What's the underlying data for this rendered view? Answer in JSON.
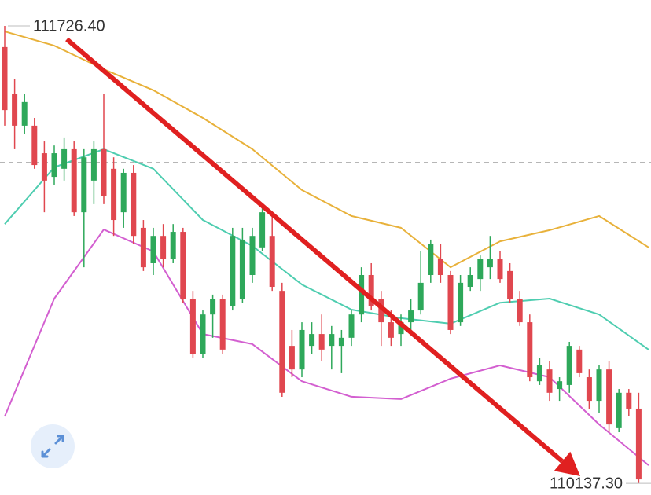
{
  "chart_data": {
    "type": "candlestick",
    "ylim": [
      110096.6,
      111816.5
    ],
    "up_color": "#2ea85a",
    "down_color": "#e0474f",
    "open": [
      111653,
      111489,
      111380,
      111380,
      111284,
      111202,
      111230,
      111298,
      111079,
      111189,
      111298,
      111230,
      111079,
      111216,
      111025,
      110902,
      110997,
      110916,
      111011,
      110779,
      110588,
      110724,
      110779,
      110752,
      110779,
      110861,
      110957,
      110997,
      110806,
      110615,
      110533,
      110615,
      110656,
      110615,
      110615,
      110643,
      110724,
      110861,
      110779,
      110697,
      110656,
      110697,
      110738,
      110861,
      110916,
      110861,
      110697,
      110820,
      110847,
      110888,
      110916,
      110875,
      110779,
      110697,
      110492,
      110533,
      110465,
      110479,
      110602,
      110506,
      110424,
      110533,
      110329,
      110452,
      110397
    ],
    "high": [
      111726.4,
      111543,
      111489,
      111407,
      111325,
      111311,
      111339,
      111325,
      111298,
      111325,
      111489,
      111270,
      111230,
      111243,
      111052,
      111025,
      111038,
      111038,
      111025,
      110806,
      110738,
      110793,
      110793,
      111025,
      111025,
      111025,
      111093,
      111079,
      110834,
      110670,
      110697,
      110697,
      110724,
      110684,
      110670,
      110738,
      110888,
      110902,
      110806,
      110738,
      110724,
      110779,
      110943,
      110984,
      110970,
      110875,
      110861,
      110888,
      110929,
      110997,
      110943,
      110902,
      110806,
      110724,
      110574,
      110561,
      110506,
      110629,
      110615,
      110533,
      110547,
      110561,
      110465,
      110465,
      110452
    ],
    "low": [
      111380,
      111298,
      111352,
      111230,
      111079,
      111175,
      111189,
      111066,
      110888,
      111107,
      111107,
      110997,
      111025,
      110970,
      110875,
      110861,
      110888,
      110902,
      110765,
      110574,
      110574,
      110643,
      110588,
      110738,
      110765,
      110834,
      110943,
      110806,
      110438,
      110506,
      110506,
      110588,
      110561,
      110533,
      110520,
      110615,
      110697,
      110738,
      110615,
      110615,
      110615,
      110656,
      110724,
      110834,
      110834,
      110656,
      110684,
      110806,
      110806,
      110847,
      110834,
      110765,
      110684,
      110492,
      110479,
      110424,
      110424,
      110452,
      110506,
      110397,
      110383,
      110315,
      110315,
      110370,
      110137.3
    ],
    "close": [
      111434,
      111380,
      111462,
      111243,
      111189,
      111284,
      111298,
      111079,
      111270,
      111298,
      111134,
      111052,
      111216,
      110997,
      110888,
      110997,
      110916,
      111011,
      110779,
      110588,
      110724,
      110779,
      110602,
      110997,
      110984,
      110997,
      111079,
      110820,
      110452,
      110533,
      110670,
      110656,
      110602,
      110656,
      110643,
      110724,
      110861,
      110752,
      110697,
      110643,
      110697,
      110738,
      110834,
      110970,
      110861,
      110670,
      110834,
      110861,
      110916,
      110916,
      110847,
      110779,
      110697,
      110506,
      110547,
      110452,
      110492,
      110615,
      110520,
      110424,
      110533,
      110342,
      110452,
      110397,
      110151
    ],
    "line_x": [
      0,
      5,
      10,
      15,
      20,
      25,
      30,
      35,
      40,
      45,
      50,
      55,
      60,
      65
    ],
    "lines": [
      {
        "color": "#e8b13a",
        "values": [
          111707,
          111658,
          111576,
          111503,
          111407,
          111298,
          111156,
          111066,
          111025,
          110888,
          110978,
          111017,
          111066,
          110957
        ]
      },
      {
        "color": "#4ecdb0",
        "values": [
          111038,
          111235,
          111298,
          111230,
          111052,
          110962,
          110828,
          110741,
          110711,
          110692,
          110765,
          110779,
          110724,
          110602
        ]
      },
      {
        "color": "#d35fd0",
        "values": [
          110370,
          110779,
          111019,
          110943,
          110656,
          110621,
          110492,
          110438,
          110430,
          110501,
          110547,
          110506,
          110342,
          110200
        ]
      }
    ],
    "reference_line": 111251,
    "annotations": [
      {
        "value": 111726.4,
        "label": "111726.40"
      },
      {
        "value": 110137.3,
        "label": "110137.30"
      }
    ]
  }
}
